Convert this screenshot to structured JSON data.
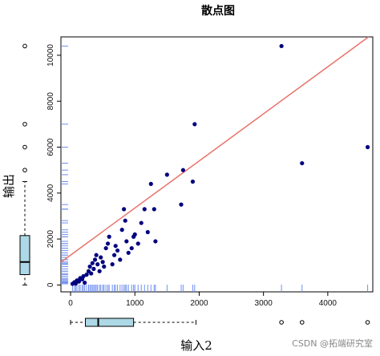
{
  "chart_data": {
    "type": "scatter",
    "title": "散点图",
    "xlabel": "输入2",
    "ylabel": "输出",
    "xlim": [
      -150,
      4700
    ],
    "ylim": [
      -300,
      10800
    ],
    "x_ticks": [
      0,
      1000,
      2000,
      3000,
      4000
    ],
    "y_ticks": [
      0,
      2000,
      4000,
      6000,
      8000,
      10000
    ],
    "grid": false,
    "point_color": "#00007f",
    "line_color": "#e8736b",
    "rug_color": "#6f8ff0",
    "box_fill": "#add8e6",
    "regression_line": {
      "intercept": 1300,
      "slope": 2.05
    },
    "points": [
      {
        "x": 30,
        "y": 50
      },
      {
        "x": 60,
        "y": 120
      },
      {
        "x": 80,
        "y": 60
      },
      {
        "x": 100,
        "y": 200
      },
      {
        "x": 130,
        "y": 150
      },
      {
        "x": 150,
        "y": 300
      },
      {
        "x": 180,
        "y": 250
      },
      {
        "x": 200,
        "y": 380
      },
      {
        "x": 220,
        "y": 100
      },
      {
        "x": 250,
        "y": 450
      },
      {
        "x": 280,
        "y": 600
      },
      {
        "x": 300,
        "y": 800
      },
      {
        "x": 320,
        "y": 500
      },
      {
        "x": 340,
        "y": 950
      },
      {
        "x": 360,
        "y": 700
      },
      {
        "x": 380,
        "y": 1100
      },
      {
        "x": 400,
        "y": 1300
      },
      {
        "x": 420,
        "y": 900
      },
      {
        "x": 450,
        "y": 600
      },
      {
        "x": 470,
        "y": 1200
      },
      {
        "x": 500,
        "y": 1000
      },
      {
        "x": 520,
        "y": 800
      },
      {
        "x": 550,
        "y": 1600
      },
      {
        "x": 580,
        "y": 1800
      },
      {
        "x": 600,
        "y": 2100
      },
      {
        "x": 650,
        "y": 900
      },
      {
        "x": 680,
        "y": 1300
      },
      {
        "x": 700,
        "y": 1700
      },
      {
        "x": 730,
        "y": 1500
      },
      {
        "x": 770,
        "y": 1100
      },
      {
        "x": 800,
        "y": 2400
      },
      {
        "x": 830,
        "y": 3300
      },
      {
        "x": 850,
        "y": 2800
      },
      {
        "x": 870,
        "y": 1900
      },
      {
        "x": 900,
        "y": 1400
      },
      {
        "x": 950,
        "y": 1600
      },
      {
        "x": 980,
        "y": 2100
      },
      {
        "x": 1000,
        "y": 2200
      },
      {
        "x": 1050,
        "y": 1800
      },
      {
        "x": 1100,
        "y": 2700
      },
      {
        "x": 1150,
        "y": 3300
      },
      {
        "x": 1200,
        "y": 2300
      },
      {
        "x": 1250,
        "y": 4400
      },
      {
        "x": 1300,
        "y": 3300
      },
      {
        "x": 1320,
        "y": 1900
      },
      {
        "x": 1500,
        "y": 4800
      },
      {
        "x": 1720,
        "y": 3500
      },
      {
        "x": 1750,
        "y": 5000
      },
      {
        "x": 1900,
        "y": 4500
      },
      {
        "x": 1930,
        "y": 7000
      },
      {
        "x": 3280,
        "y": 10400
      },
      {
        "x": 3600,
        "y": 5300
      },
      {
        "x": 4620,
        "y": 6000
      }
    ],
    "x_box": {
      "min": 0,
      "q1": 230,
      "median": 430,
      "q3": 980,
      "max": 1950,
      "outliers": [
        3280,
        3600,
        4620
      ]
    },
    "y_box": {
      "min": 0,
      "q1": 450,
      "median": 1000,
      "q3": 2150,
      "max": 4500,
      "outliers": [
        5000,
        6000,
        7000,
        10400
      ]
    }
  },
  "watermark": "CSDN @拓端研究室"
}
